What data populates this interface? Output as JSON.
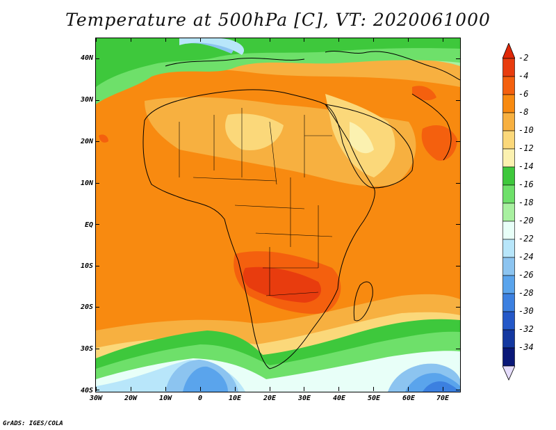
{
  "title": "Temperature at 500hPa [C], VT: 2020061000",
  "footer": "GrADS: IGES/COLA",
  "y_labels": [
    "40N",
    "30N",
    "20N",
    "10N",
    "EQ",
    "10S",
    "20S",
    "30S",
    "40S"
  ],
  "x_labels": [
    "30W",
    "20W",
    "10W",
    "0",
    "10E",
    "20E",
    "30E",
    "40E",
    "50E",
    "60E",
    "70E"
  ],
  "colorbar": {
    "labels": [
      "-2",
      "-4",
      "-6",
      "-8",
      "-10",
      "-12",
      "-14",
      "-16",
      "-18",
      "-20",
      "-22",
      "-24",
      "-26",
      "-28",
      "-30",
      "-32",
      "-34"
    ],
    "colors": [
      "#e83c0e",
      "#f4600e",
      "#f88a10",
      "#f7b040",
      "#fbd87a",
      "#fbf1b0",
      "#3ec83c",
      "#6ee06a",
      "#a8f0a0",
      "#e8fff8",
      "#b8e6fa",
      "#8cc4f0",
      "#5aa4ec",
      "#3c80e0",
      "#2458c8",
      "#1438a0",
      "#0a1878"
    ],
    "top_color": "#e02808",
    "bottom_color": "#e6ddfc"
  },
  "map_colors": {
    "base": "#f88a10",
    "deep": "#f4600e",
    "hot": "#e83c0e",
    "mid": "#f7b040",
    "light": "#fbd87a",
    "pale": "#fbf1b0",
    "green": "#3ec83c",
    "lightgreen": "#6ee06a",
    "palegreen": "#a8f0a0",
    "cyan": "#e8fff8",
    "lightblue": "#b8e6fa",
    "blue": "#8cc4f0",
    "medblue": "#5aa4ec",
    "darkblue": "#3c80e0"
  }
}
